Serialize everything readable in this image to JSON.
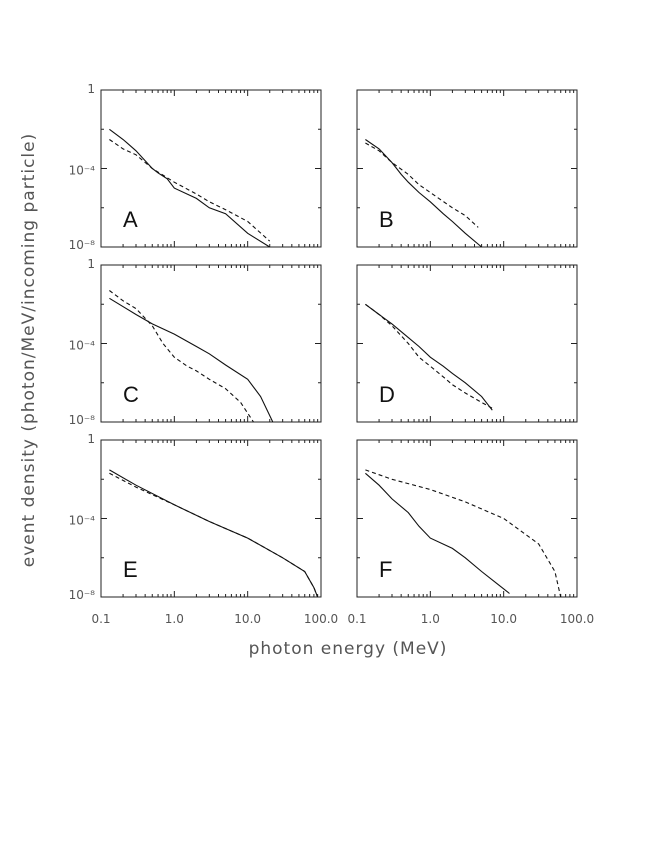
{
  "figure": {
    "xlabel": "photon energy (MeV)",
    "ylabel": "event density (photon/MeV/incoming particle)"
  },
  "chart_data": [
    {
      "type": "line",
      "panel": "A",
      "x_log": true,
      "y_log": true,
      "xlim": [
        0.1,
        30
      ],
      "ylim": [
        1e-08,
        1
      ],
      "series": [
        {
          "style": "solid",
          "x": [
            0.13,
            0.2,
            0.3,
            0.5,
            0.6,
            0.8,
            1.0,
            2.0,
            3.0,
            5.0,
            10.0,
            20.0
          ],
          "y": [
            0.01,
            0.003,
            0.0008,
            0.0001,
            6e-05,
            3e-05,
            1e-05,
            3e-06,
            1e-06,
            5e-07,
            5e-08,
            1e-08
          ]
        },
        {
          "style": "dashed",
          "x": [
            0.13,
            0.2,
            0.3,
            0.5,
            1.0,
            2.0,
            3.0,
            5.0,
            10.0,
            20.0
          ],
          "y": [
            0.003,
            0.001,
            0.0005,
            0.0001,
            2e-05,
            5e-06,
            2e-06,
            8e-07,
            2e-07,
            2e-08
          ]
        }
      ],
      "ticks": {
        "y": [
          "1",
          "10⁻⁴",
          "10⁻⁸"
        ]
      }
    },
    {
      "type": "line",
      "panel": "B",
      "x_log": true,
      "y_log": true,
      "xlim": [
        0.1,
        8
      ],
      "ylim": [
        1e-08,
        1
      ],
      "series": [
        {
          "style": "solid",
          "x": [
            0.13,
            0.2,
            0.3,
            0.4,
            0.5,
            0.7,
            1.0,
            1.5,
            2.0,
            3.0,
            5.0
          ],
          "y": [
            0.003,
            0.001,
            0.0002,
            5e-05,
            2e-05,
            6e-06,
            2e-06,
            5e-07,
            2e-07,
            5e-08,
            1e-08
          ]
        },
        {
          "style": "dashed",
          "x": [
            0.13,
            0.2,
            0.3,
            0.5,
            0.7,
            1.0,
            2.0,
            3.0,
            4.5
          ],
          "y": [
            0.002,
            0.0008,
            0.0002,
            5e-05,
            1.5e-05,
            6e-06,
            1e-06,
            4e-07,
            1e-07
          ]
        }
      ],
      "ticks": {
        "y": [
          "",
          "",
          ""
        ]
      }
    },
    {
      "type": "line",
      "panel": "C",
      "x_log": true,
      "y_log": true,
      "xlim": [
        0.1,
        30
      ],
      "ylim": [
        1e-08,
        1
      ],
      "series": [
        {
          "style": "solid",
          "x": [
            0.13,
            0.3,
            0.5,
            1.0,
            2.0,
            3.0,
            5.0,
            10.0,
            15.0,
            22.0
          ],
          "y": [
            0.02,
            0.003,
            0.001,
            0.0003,
            7e-05,
            3e-05,
            8e-06,
            1.5e-06,
            2e-07,
            1e-08
          ]
        },
        {
          "style": "dashed",
          "x": [
            0.13,
            0.2,
            0.3,
            0.5,
            0.7,
            1.0,
            1.5,
            2.0,
            3.0,
            5.0,
            8.0,
            12.0
          ],
          "y": [
            0.05,
            0.015,
            0.006,
            0.0008,
            0.0001,
            2e-05,
            7e-06,
            4e-06,
            1.5e-06,
            5e-07,
            1e-07,
            1e-08
          ]
        }
      ],
      "ticks": {
        "y": [
          "1",
          "10⁻⁴",
          "10⁻⁸"
        ]
      }
    },
    {
      "type": "line",
      "panel": "D",
      "x_log": true,
      "y_log": true,
      "xlim": [
        0.1,
        8
      ],
      "ylim": [
        1e-08,
        1
      ],
      "series": [
        {
          "style": "solid",
          "x": [
            0.13,
            0.2,
            0.3,
            0.5,
            0.7,
            1.0,
            1.5,
            2.0,
            3.0,
            5.0,
            7.0
          ],
          "y": [
            0.01,
            0.003,
            0.001,
            0.0002,
            7e-05,
            2e-05,
            7e-06,
            3e-06,
            1e-06,
            2e-07,
            4e-08
          ]
        },
        {
          "style": "dashed",
          "x": [
            0.13,
            0.2,
            0.3,
            0.5,
            0.7,
            1.0,
            1.5,
            2.0,
            3.0,
            5.0,
            7.0
          ],
          "y": [
            0.01,
            0.003,
            0.0008,
            0.0001,
            2e-05,
            7e-06,
            2e-06,
            8e-07,
            3e-07,
            1e-07,
            5e-08
          ]
        }
      ],
      "ticks": {
        "y": [
          "",
          "",
          ""
        ]
      }
    },
    {
      "type": "line",
      "panel": "E",
      "x_log": true,
      "y_log": true,
      "xlim": [
        0.1,
        100
      ],
      "ylim": [
        1e-08,
        1
      ],
      "series": [
        {
          "style": "solid",
          "x": [
            0.13,
            0.3,
            1.0,
            3.0,
            10.0,
            30.0,
            60.0,
            80.0,
            90.0
          ],
          "y": [
            0.03,
            0.005,
            0.0005,
            7e-05,
            1e-05,
            1e-06,
            2e-07,
            3e-08,
            1e-08
          ]
        },
        {
          "style": "dashed",
          "x": [
            0.13,
            0.3,
            1.0,
            3.0,
            10.0,
            30.0,
            60.0,
            80.0,
            90.0
          ],
          "y": [
            0.02,
            0.004,
            0.0005,
            7e-05,
            1e-05,
            1e-06,
            2e-07,
            3e-08,
            1e-08
          ]
        }
      ],
      "ticks": {
        "x": [
          "0.1",
          "1.0",
          "10.0",
          "100.0"
        ],
        "y": [
          "1",
          "10⁻⁴",
          "10⁻⁸"
        ]
      }
    },
    {
      "type": "line",
      "panel": "F",
      "x_log": true,
      "y_log": true,
      "xlim": [
        0.1,
        70
      ],
      "ylim": [
        1e-08,
        1
      ],
      "series": [
        {
          "style": "solid",
          "x": [
            0.13,
            0.2,
            0.3,
            0.5,
            0.7,
            1.0,
            2.0,
            3.0,
            5.0,
            8.0,
            12.0
          ],
          "y": [
            0.02,
            0.005,
            0.001,
            0.0002,
            4e-05,
            1e-05,
            3e-06,
            1e-06,
            2e-07,
            5e-08,
            1.5e-08
          ]
        },
        {
          "style": "dashed",
          "x": [
            0.13,
            0.3,
            1.0,
            3.0,
            10.0,
            30.0,
            50.0,
            60.0
          ],
          "y": [
            0.03,
            0.01,
            0.003,
            0.0007,
            0.0001,
            5e-06,
            2e-07,
            1e-08
          ]
        }
      ],
      "ticks": {
        "x": [
          "0.1",
          "1.0",
          "10.0",
          "100.0"
        ],
        "y": [
          "",
          "",
          ""
        ]
      }
    }
  ]
}
